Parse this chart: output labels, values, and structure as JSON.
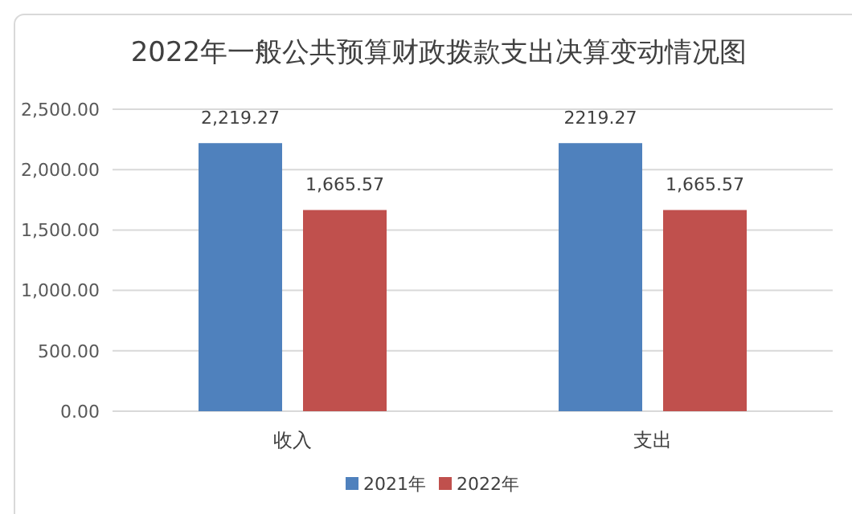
{
  "chart_data": {
    "type": "bar",
    "title": "2022年一般公共预算财政拨款支出决算变动情况图",
    "categories": [
      "收入",
      "支出"
    ],
    "series": [
      {
        "name": "2021年",
        "color": "#4f81bd",
        "values": [
          2219.27,
          2219.27
        ],
        "value_labels": [
          "2,219.27",
          "2219.27"
        ]
      },
      {
        "name": "2022年",
        "color": "#c0504d",
        "values": [
          1665.57,
          1665.57
        ],
        "value_labels": [
          "1,665.57",
          "1,665.57"
        ]
      }
    ],
    "ylim": [
      0,
      2500
    ],
    "yticks": [
      {
        "value": 0,
        "label": "0.00"
      },
      {
        "value": 500,
        "label": "500.00"
      },
      {
        "value": 1000,
        "label": "1,000.00"
      },
      {
        "value": 1500,
        "label": "1,500.00"
      },
      {
        "value": 2000,
        "label": "2,000.00"
      },
      {
        "value": 2500,
        "label": "2,500.00"
      }
    ],
    "grid": "y",
    "legend": "bottom"
  }
}
